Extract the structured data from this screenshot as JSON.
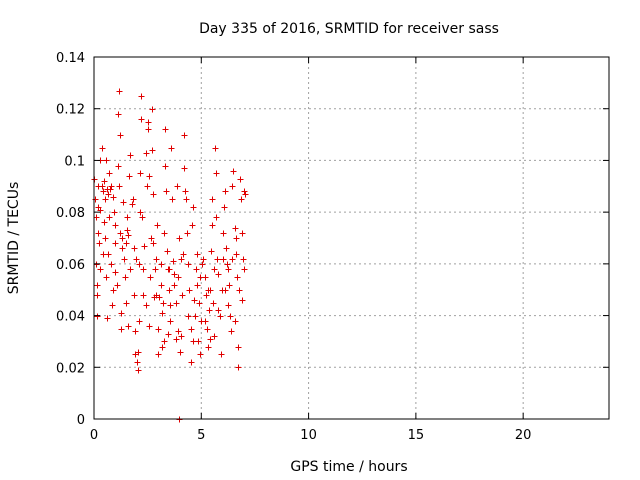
{
  "chart_data": {
    "type": "scatter",
    "title": "Day 335 of 2016, SRMTID for receiver sass",
    "xlabel": "GPS time / hours",
    "ylabel": "SRMTID / TECUs",
    "xlim": [
      0,
      24
    ],
    "ylim": [
      0,
      0.14
    ],
    "xticks": [
      0,
      5,
      10,
      15,
      20
    ],
    "yticks": [
      0,
      0.02,
      0.04,
      0.06,
      0.08,
      0.1,
      0.12,
      0.14
    ],
    "xtick_labels": [
      "0",
      "5",
      "10",
      "15",
      "20"
    ],
    "ytick_labels": [
      "0",
      "0.02",
      "0.04",
      "0.06",
      "0.08",
      "0.1",
      "0.12",
      "0.14"
    ],
    "grid": true,
    "marker": "+",
    "color": "#e00000",
    "series": [
      {
        "name": "SRMTID",
        "points": [
          [
            0.0,
            0.093
          ],
          [
            0.05,
            0.085
          ],
          [
            0.1,
            0.078
          ],
          [
            0.1,
            0.06
          ],
          [
            0.12,
            0.048
          ],
          [
            0.15,
            0.052
          ],
          [
            0.15,
            0.04
          ],
          [
            0.2,
            0.072
          ],
          [
            0.2,
            0.082
          ],
          [
            0.25,
            0.068
          ],
          [
            0.3,
            0.058
          ],
          [
            0.3,
            0.1
          ],
          [
            0.35,
            0.105
          ],
          [
            0.35,
            0.09
          ],
          [
            0.4,
            0.088
          ],
          [
            0.4,
            0.064
          ],
          [
            0.45,
            0.092
          ],
          [
            0.5,
            0.085
          ],
          [
            0.5,
            0.07
          ],
          [
            0.55,
            0.1
          ],
          [
            0.55,
            0.055
          ],
          [
            0.6,
            0.089
          ],
          [
            0.6,
            0.039
          ],
          [
            0.65,
            0.087
          ],
          [
            0.7,
            0.095
          ],
          [
            0.7,
            0.078
          ],
          [
            0.75,
            0.089
          ],
          [
            0.8,
            0.09
          ],
          [
            0.8,
            0.06
          ],
          [
            0.85,
            0.044
          ],
          [
            0.9,
            0.086
          ],
          [
            0.95,
            0.08
          ],
          [
            1.0,
            0.075
          ],
          [
            1.0,
            0.068
          ],
          [
            1.05,
            0.052
          ],
          [
            1.1,
            0.118
          ],
          [
            1.1,
            0.098
          ],
          [
            1.15,
            0.127
          ],
          [
            1.2,
            0.11
          ],
          [
            1.2,
            0.072
          ],
          [
            1.25,
            0.035
          ],
          [
            1.3,
            0.07
          ],
          [
            1.3,
            0.066
          ],
          [
            1.35,
            0.084
          ],
          [
            1.4,
            0.062
          ],
          [
            1.45,
            0.055
          ],
          [
            1.5,
            0.068
          ],
          [
            1.5,
            0.045
          ],
          [
            1.55,
            0.078
          ],
          [
            1.6,
            0.071
          ],
          [
            1.65,
            0.094
          ],
          [
            1.7,
            0.102
          ],
          [
            1.7,
            0.058
          ],
          [
            1.75,
            0.083
          ],
          [
            1.8,
            0.085
          ],
          [
            1.85,
            0.048
          ],
          [
            1.9,
            0.025
          ],
          [
            1.9,
            0.034
          ],
          [
            1.95,
            0.062
          ],
          [
            2.0,
            0.022
          ],
          [
            2.05,
            0.019
          ],
          [
            2.1,
            0.038
          ],
          [
            2.1,
            0.06
          ],
          [
            2.15,
            0.095
          ],
          [
            2.2,
            0.125
          ],
          [
            2.2,
            0.116
          ],
          [
            2.25,
            0.078
          ],
          [
            2.3,
            0.058
          ],
          [
            2.3,
            0.048
          ],
          [
            2.35,
            0.067
          ],
          [
            2.4,
            0.103
          ],
          [
            2.45,
            0.09
          ],
          [
            2.5,
            0.115
          ],
          [
            2.5,
            0.112
          ],
          [
            2.55,
            0.094
          ],
          [
            2.6,
            0.055
          ],
          [
            2.65,
            0.07
          ],
          [
            2.7,
            0.12
          ],
          [
            2.7,
            0.104
          ],
          [
            2.75,
            0.087
          ],
          [
            2.8,
            0.047
          ],
          [
            2.85,
            0.058
          ],
          [
            2.9,
            0.062
          ],
          [
            2.95,
            0.075
          ],
          [
            3.0,
            0.025
          ],
          [
            3.0,
            0.035
          ],
          [
            3.05,
            0.047
          ],
          [
            3.1,
            0.052
          ],
          [
            3.1,
            0.06
          ],
          [
            3.15,
            0.028
          ],
          [
            3.2,
            0.045
          ],
          [
            3.25,
            0.072
          ],
          [
            3.3,
            0.112
          ],
          [
            3.3,
            0.098
          ],
          [
            3.35,
            0.088
          ],
          [
            3.4,
            0.065
          ],
          [
            3.45,
            0.033
          ],
          [
            3.5,
            0.05
          ],
          [
            3.5,
            0.058
          ],
          [
            3.55,
            0.038
          ],
          [
            3.6,
            0.105
          ],
          [
            3.65,
            0.085
          ],
          [
            3.7,
            0.061
          ],
          [
            3.75,
            0.052
          ],
          [
            3.8,
            0.045
          ],
          [
            3.8,
            0.031
          ],
          [
            3.85,
            0.09
          ],
          [
            3.9,
            0.055
          ],
          [
            3.95,
            0.07
          ],
          [
            4.0,
            0.026
          ],
          [
            4.05,
            0.032
          ],
          [
            4.1,
            0.048
          ],
          [
            4.2,
            0.11
          ],
          [
            4.2,
            0.097
          ],
          [
            4.25,
            0.088
          ],
          [
            4.3,
            0.085
          ],
          [
            4.35,
            0.072
          ],
          [
            4.4,
            0.06
          ],
          [
            4.45,
            0.05
          ],
          [
            4.5,
            0.022
          ],
          [
            4.5,
            0.035
          ],
          [
            4.55,
            0.075
          ],
          [
            4.6,
            0.082
          ],
          [
            4.65,
            0.046
          ],
          [
            4.7,
            0.04
          ],
          [
            4.75,
            0.058
          ],
          [
            4.8,
            0.052
          ],
          [
            4.85,
            0.03
          ],
          [
            4.9,
            0.045
          ],
          [
            4.95,
            0.055
          ],
          [
            5.0,
            0.038
          ],
          [
            5.05,
            0.06
          ],
          [
            5.1,
            0.062
          ],
          [
            5.15,
            0.055
          ],
          [
            5.2,
            0.048
          ],
          [
            5.25,
            0.035
          ],
          [
            5.3,
            0.028
          ],
          [
            5.35,
            0.042
          ],
          [
            5.4,
            0.05
          ],
          [
            5.45,
            0.065
          ],
          [
            5.5,
            0.085
          ],
          [
            5.5,
            0.075
          ],
          [
            5.55,
            0.045
          ],
          [
            5.6,
            0.032
          ],
          [
            5.65,
            0.105
          ],
          [
            5.7,
            0.095
          ],
          [
            5.7,
            0.078
          ],
          [
            5.75,
            0.062
          ],
          [
            5.8,
            0.056
          ],
          [
            5.85,
            0.04
          ],
          [
            5.9,
            0.025
          ],
          [
            5.95,
            0.05
          ],
          [
            6.0,
            0.072
          ],
          [
            6.05,
            0.082
          ],
          [
            6.1,
            0.088
          ],
          [
            6.15,
            0.066
          ],
          [
            6.2,
            0.06
          ],
          [
            6.25,
            0.058
          ],
          [
            6.3,
            0.052
          ],
          [
            6.35,
            0.04
          ],
          [
            6.4,
            0.034
          ],
          [
            6.45,
            0.09
          ],
          [
            6.5,
            0.096
          ],
          [
            6.55,
            0.074
          ],
          [
            6.6,
            0.064
          ],
          [
            6.65,
            0.055
          ],
          [
            6.7,
            0.028
          ],
          [
            6.7,
            0.02
          ],
          [
            6.75,
            0.05
          ],
          [
            6.8,
            0.093
          ],
          [
            6.85,
            0.085
          ],
          [
            6.9,
            0.072
          ],
          [
            6.95,
            0.062
          ],
          [
            7.0,
            0.088
          ],
          [
            7.0,
            0.058
          ],
          [
            7.05,
            0.087
          ],
          [
            0.2,
            0.09
          ],
          [
            0.45,
            0.076
          ],
          [
            0.9,
            0.05
          ],
          [
            1.25,
            0.041
          ],
          [
            1.6,
            0.036
          ],
          [
            2.05,
            0.026
          ],
          [
            2.4,
            0.044
          ],
          [
            2.75,
            0.068
          ],
          [
            3.25,
            0.03
          ],
          [
            3.55,
            0.044
          ],
          [
            3.9,
            0.034
          ],
          [
            4.4,
            0.04
          ],
          [
            4.8,
            0.064
          ],
          [
            5.3,
            0.05
          ],
          [
            5.8,
            0.042
          ],
          [
            6.25,
            0.044
          ],
          [
            6.6,
            0.07
          ],
          [
            0.65,
            0.064
          ],
          [
            1.15,
            0.09
          ],
          [
            1.85,
            0.066
          ],
          [
            2.55,
            0.036
          ],
          [
            3.15,
            0.041
          ],
          [
            3.75,
            0.056
          ],
          [
            4.15,
            0.064
          ],
          [
            4.6,
            0.03
          ],
          [
            5.15,
            0.038
          ],
          [
            5.6,
            0.058
          ],
          [
            6.1,
            0.05
          ],
          [
            6.55,
            0.038
          ],
          [
            6.9,
            0.046
          ],
          [
            0.3,
            0.081
          ],
          [
            1.0,
            0.057
          ],
          [
            1.55,
            0.073
          ],
          [
            2.15,
            0.08
          ],
          [
            2.9,
            0.048
          ],
          [
            3.45,
            0.058
          ],
          [
            4.05,
            0.062
          ],
          [
            4.95,
            0.025
          ],
          [
            5.4,
            0.031
          ],
          [
            6.0,
            0.062
          ],
          [
            6.45,
            0.062
          ],
          [
            3.95,
            0.0
          ]
        ]
      }
    ]
  }
}
